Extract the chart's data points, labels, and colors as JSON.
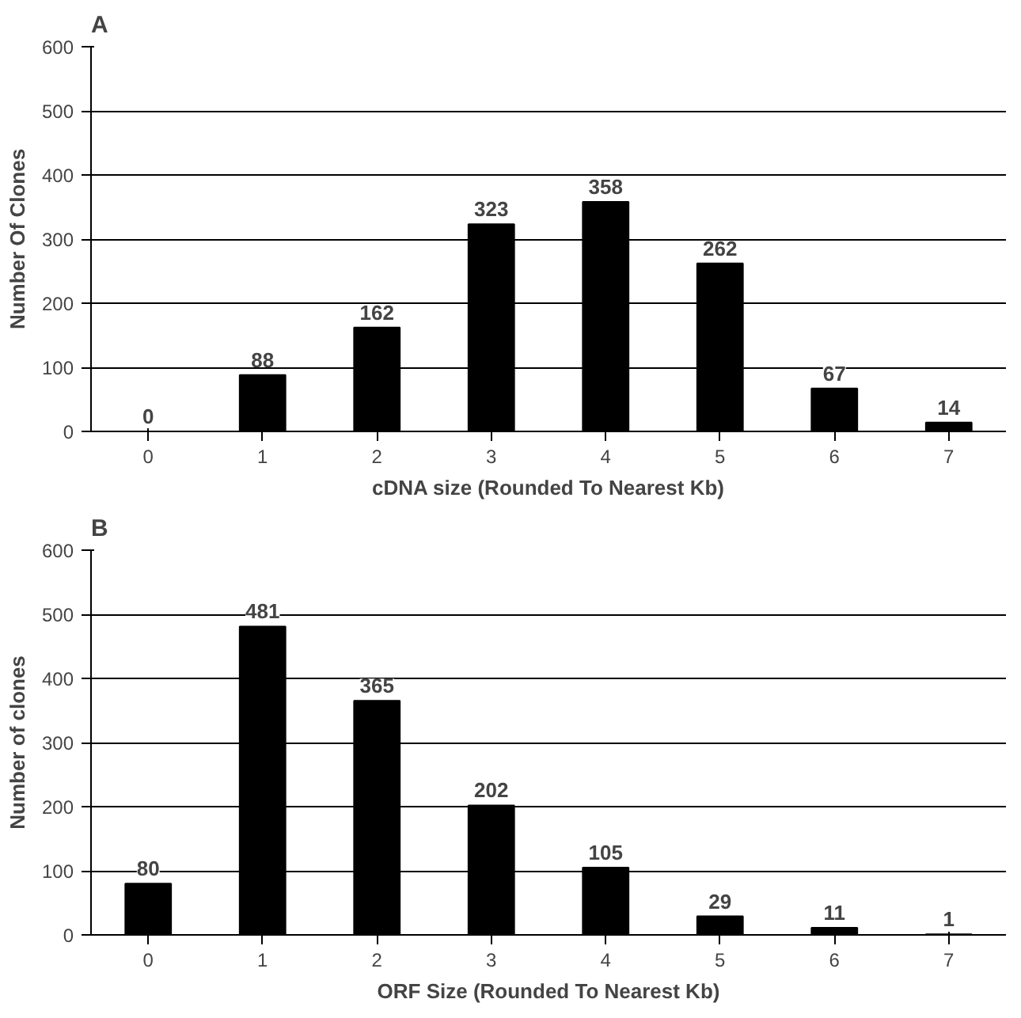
{
  "chart_data": [
    {
      "type": "bar",
      "title": "A",
      "xlabel": "cDNA size (Rounded To Nearest Kb)",
      "ylabel": "Number Of Clones",
      "categories": [
        "0",
        "1",
        "2",
        "3",
        "4",
        "5",
        "6",
        "7"
      ],
      "values": [
        0,
        88,
        162,
        323,
        358,
        262,
        67,
        14
      ],
      "color": "#000000",
      "ylim": [
        0,
        600
      ],
      "yticks": [
        0,
        100,
        200,
        300,
        400,
        500,
        600
      ],
      "grid": "y",
      "data_labels": true
    },
    {
      "type": "bar",
      "title": "B",
      "xlabel": "ORF Size (Rounded To Nearest Kb)",
      "ylabel": "Number of clones",
      "categories": [
        "0",
        "1",
        "2",
        "3",
        "4",
        "5",
        "6",
        "7"
      ],
      "values": [
        80,
        481,
        365,
        202,
        105,
        29,
        11,
        1
      ],
      "color": "#000000",
      "ylim": [
        0,
        600
      ],
      "yticks": [
        0,
        100,
        200,
        300,
        400,
        500,
        600
      ],
      "grid": "y",
      "data_labels": true
    }
  ]
}
